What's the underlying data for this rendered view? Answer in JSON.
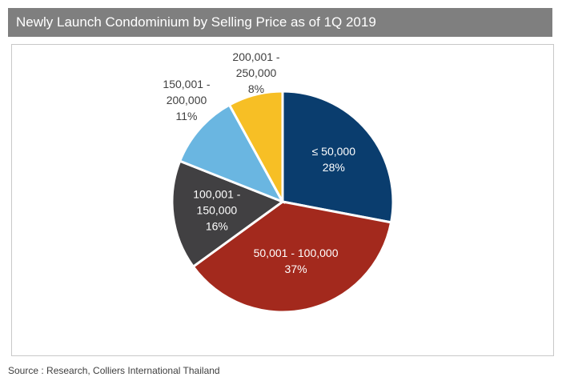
{
  "title": "Newly Launch Condominium by Selling Price as of 1Q 2019",
  "source": "Source : Research, Colliers International Thailand",
  "chart_data": {
    "type": "pie",
    "title": "Newly Launch Condominium by Selling Price as of 1Q 2019",
    "slices": [
      {
        "label": [
          "≤ 50,000"
        ],
        "pct_text": "28%",
        "value": 28,
        "color": "#0a3d6e",
        "label_color": "#ffffff",
        "inside": true
      },
      {
        "label": [
          "50,001 - 100,000"
        ],
        "pct_text": "37%",
        "value": 37,
        "color": "#a3291d",
        "label_color": "#ffffff",
        "inside": true
      },
      {
        "label": [
          "100,001 -",
          "150,000"
        ],
        "pct_text": "16%",
        "value": 16,
        "color": "#414042",
        "label_color": "#ffffff",
        "inside": true
      },
      {
        "label": [
          "150,001 -",
          "200,000"
        ],
        "pct_text": "11%",
        "value": 11,
        "color": "#6ab6e1",
        "label_color": "#404040",
        "inside": false
      },
      {
        "label": [
          "200,001 -",
          "250,000"
        ],
        "pct_text": "8%",
        "value": 8,
        "color": "#f7bf25",
        "label_color": "#404040",
        "inside": false
      }
    ]
  }
}
